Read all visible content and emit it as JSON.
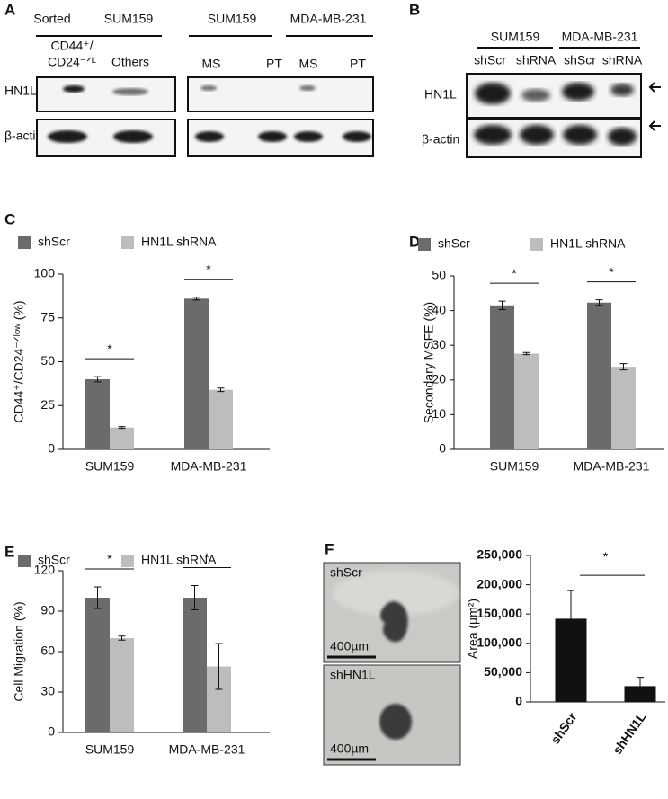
{
  "blot_a": {
    "panel": "A",
    "header_left": [
      "Sorted",
      "SUM159"
    ],
    "header_right": [
      "SUM159",
      "MDA-MB-231"
    ],
    "lanes_left": [
      [
        "CD44⁺/",
        "CD24⁻ᐟᴸ"
      ],
      "Others"
    ],
    "lanes_right": [
      "MS",
      "PT",
      "MS",
      "PT"
    ],
    "rows": [
      "HN1L",
      "β-actin"
    ]
  },
  "blot_b": {
    "panel": "B",
    "headers": [
      "SUM159",
      "MDA-MB-231"
    ],
    "lanes": [
      "shScr",
      "shRNA",
      "shScr",
      "shRNA"
    ],
    "rows": [
      "HN1L",
      "β-actin"
    ]
  },
  "micrographs": [
    {
      "label": "shScr",
      "scale": "400µm"
    },
    {
      "label": "shHN1L",
      "scale": "400µm"
    }
  ],
  "chart_data": [
    {
      "type": "bar",
      "panel": "C",
      "ylabel": "CD44⁺/CD24⁻ᐟˡᵒʷ (%)",
      "categories": [
        "SUM159",
        "MDA-MB-231"
      ],
      "series": [
        {
          "name": "shScr",
          "color": "#6b6b6b",
          "values": [
            40,
            86
          ],
          "errors": [
            1.5,
            0.8
          ]
        },
        {
          "name": "HN1L shRNA",
          "color": "#bdbdbd",
          "values": [
            12.5,
            34
          ],
          "errors": [
            0.5,
            1
          ]
        }
      ],
      "ylim": [
        0,
        100
      ],
      "yticks": [
        0,
        25,
        50,
        75,
        100
      ],
      "annotations": [
        "*",
        "*"
      ]
    },
    {
      "type": "bar",
      "panel": "D",
      "ylabel": "Secondary MSFE (%)",
      "categories": [
        "SUM159",
        "MDA-MB-231"
      ],
      "series": [
        {
          "name": "shScr",
          "color": "#6b6b6b",
          "values": [
            41.5,
            42.3
          ],
          "errors": [
            1.2,
            0.8
          ]
        },
        {
          "name": "HN1L shRNA",
          "color": "#bdbdbd",
          "values": [
            27.6,
            23.8
          ],
          "errors": [
            0.3,
            0.9
          ]
        }
      ],
      "ylim": [
        0,
        50
      ],
      "yticks": [
        0,
        10,
        20,
        30,
        40,
        50
      ],
      "annotations": [
        "*",
        "*"
      ]
    },
    {
      "type": "bar",
      "panel": "E",
      "ylabel": "Cell Migration (%)",
      "categories": [
        "SUM159",
        "MDA-MB-231"
      ],
      "series": [
        {
          "name": "shScr",
          "color": "#6b6b6b",
          "values": [
            100,
            100
          ],
          "errors": [
            8,
            9
          ]
        },
        {
          "name": "HN1L shRNA",
          "color": "#bdbdbd",
          "values": [
            70,
            49
          ],
          "errors": [
            1.5,
            17
          ]
        }
      ],
      "ylim": [
        0,
        120
      ],
      "yticks": [
        0,
        30,
        60,
        90,
        120
      ],
      "annotations": [
        "*",
        "*"
      ]
    },
    {
      "type": "bar",
      "panel": "F",
      "ylabel": "Area (µm²)",
      "categories": [
        "shScr",
        "shHN1L"
      ],
      "values": [
        142000,
        27000
      ],
      "errors": [
        48000,
        15000
      ],
      "color": "#111111",
      "ylim": [
        0,
        250000
      ],
      "yticks": [
        0,
        {
          "value": 50000,
          "label": "50,000"
        },
        {
          "value": 100000,
          "label": "100,000"
        },
        {
          "value": 150000,
          "label": "150,000"
        },
        {
          "value": 200000,
          "label": "200,000"
        },
        {
          "value": 250000,
          "label": "250,000"
        }
      ],
      "annotations": [
        "*"
      ]
    }
  ]
}
